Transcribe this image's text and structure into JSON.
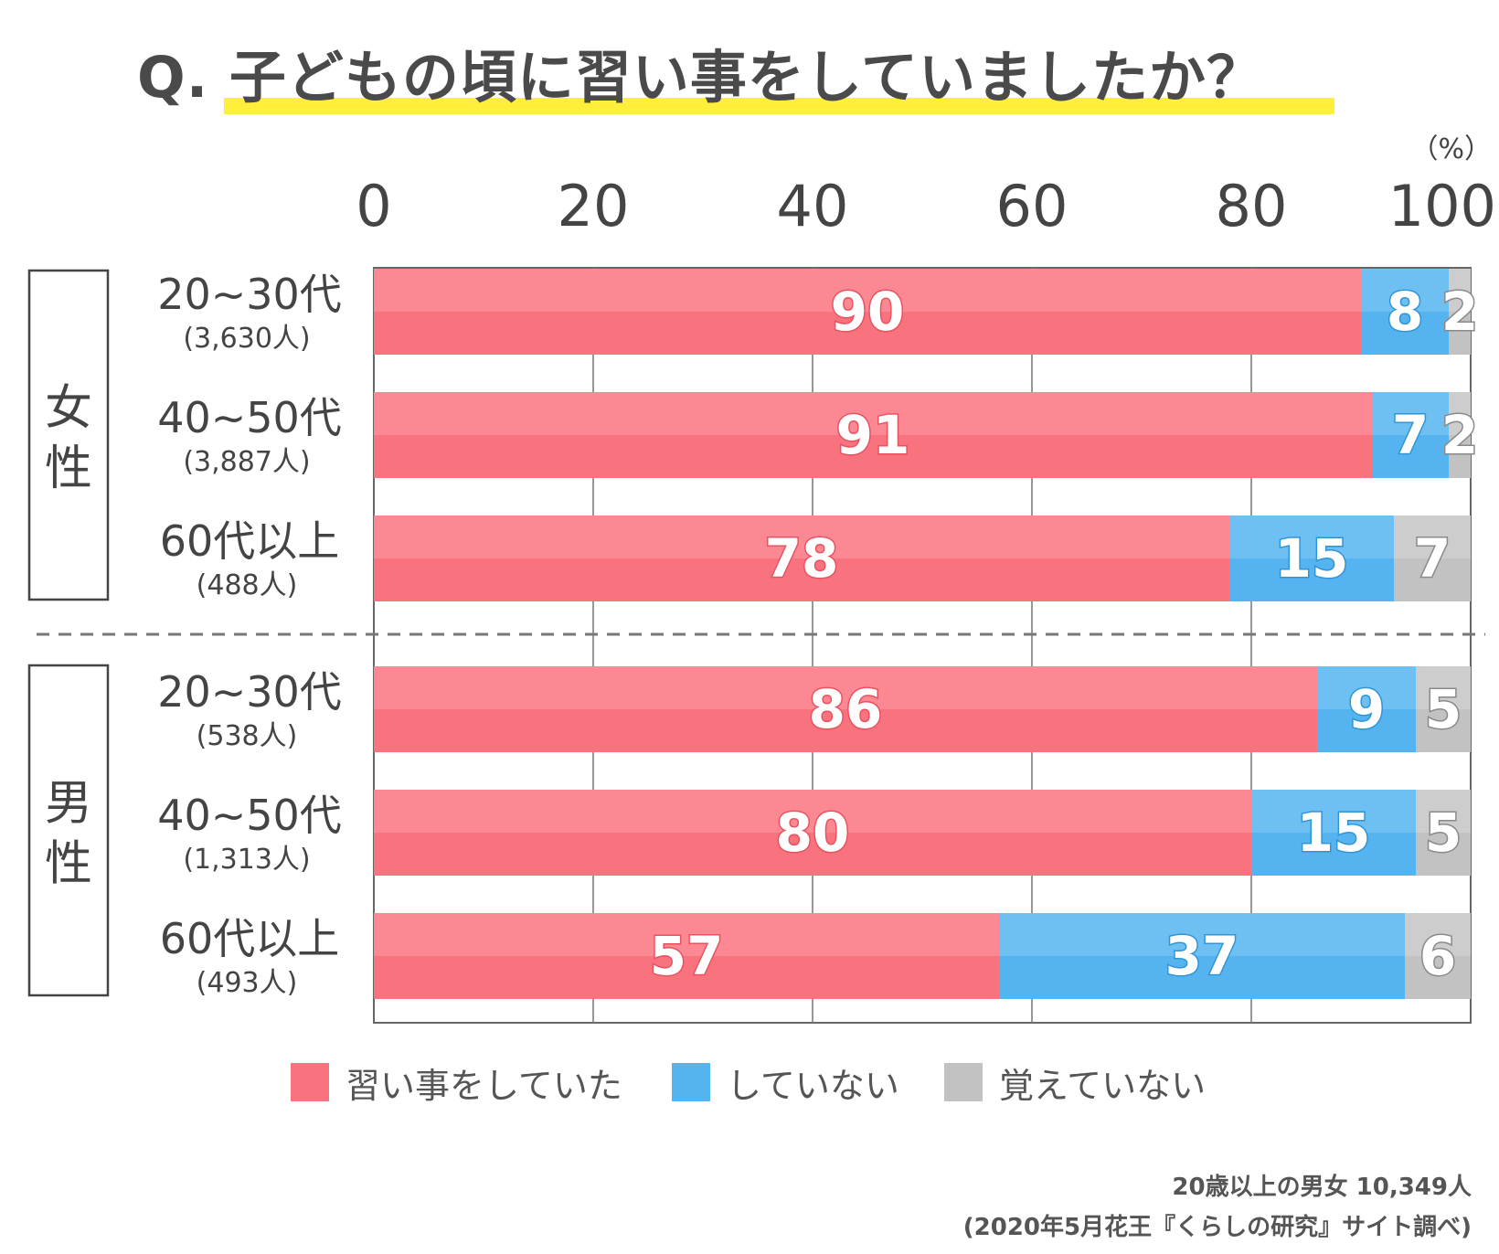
{
  "title": "Q. 子どもの頃に習い事をしていましたか？",
  "unit_label": "（%）",
  "chart_data": {
    "type": "bar",
    "orientation": "horizontal",
    "stacked": true,
    "xlim": [
      0,
      100
    ],
    "x_ticks": [
      "0",
      "20",
      "40",
      "60",
      "80",
      "100"
    ],
    "grid": true,
    "groups": [
      {
        "label": "女性",
        "rows": [
          {
            "category": "20~30代",
            "n": "(3,630人)",
            "values": [
              90,
              8,
              2
            ]
          },
          {
            "category": "40~50代",
            "n": "(3,887人)",
            "values": [
              91,
              7,
              2
            ]
          },
          {
            "category": "60代以上",
            "n": "(488人)",
            "values": [
              78,
              15,
              7
            ]
          }
        ]
      },
      {
        "label": "男性",
        "rows": [
          {
            "category": "20~30代",
            "n": "(538人)",
            "values": [
              86,
              9,
              5
            ]
          },
          {
            "category": "40~50代",
            "n": "(1,313人)",
            "values": [
              80,
              15,
              5
            ]
          },
          {
            "category": "60代以上",
            "n": "(493人)",
            "values": [
              57,
              37,
              6
            ]
          }
        ]
      }
    ],
    "series": [
      {
        "name": "習い事をしていた",
        "color": "#f9737f",
        "color_light": "#fb8892"
      },
      {
        "name": "していない",
        "color": "#55b4ef",
        "color_light": "#6ec0f2"
      },
      {
        "name": "覚えていない",
        "color": "#c2c2c2",
        "color_light": "#cdcdcd"
      }
    ]
  },
  "source": {
    "line1": "20歳以上の男女 10,349人",
    "line2": "(2020年5月花王『くらしの研究』サイト調べ)"
  }
}
